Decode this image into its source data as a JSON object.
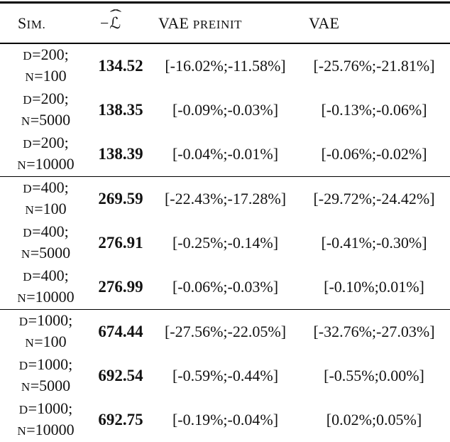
{
  "colors": {
    "text": "#121212",
    "rule": "#000000",
    "background": "#ffffff"
  },
  "header": {
    "sim_cap": "S",
    "sim_small": "IM.",
    "minus": "−",
    "loss_letter": "ℒ",
    "hat": "ˆ",
    "vae_preinit_cap": "VAE",
    "vae_preinit_small": "PREINIT",
    "vae": "VAE"
  },
  "labels": {
    "d": "D",
    "n": "N"
  },
  "rows": [
    {
      "d_rest": "=200;",
      "n_rest": "=100",
      "nll": "134.52",
      "vae_preinit": "[-16.02%;-11.58%]",
      "vae": "[-25.76%;-21.81%]"
    },
    {
      "d_rest": "=200;",
      "n_rest": "=5000",
      "nll": "138.35",
      "vae_preinit": "[-0.09%;-0.03%]",
      "vae": "[-0.13%;-0.06%]"
    },
    {
      "d_rest": "=200;",
      "n_rest": "=10000",
      "nll": "138.39",
      "vae_preinit": "[-0.04%;-0.01%]",
      "vae": "[-0.06%;-0.02%]"
    },
    {
      "d_rest": "=400;",
      "n_rest": "=100",
      "nll": "269.59",
      "vae_preinit": "[-22.43%;-17.28%]",
      "vae": "[-29.72%;-24.42%]"
    },
    {
      "d_rest": "=400;",
      "n_rest": "=5000",
      "nll": "276.91",
      "vae_preinit": "[-0.25%;-0.14%]",
      "vae": "[-0.41%;-0.30%]"
    },
    {
      "d_rest": "=400;",
      "n_rest": "=10000",
      "nll": "276.99",
      "vae_preinit": "[-0.06%;-0.03%]",
      "vae": "[-0.10%;0.01%]"
    },
    {
      "d_rest": "=1000;",
      "n_rest": "=100",
      "nll": "674.44",
      "vae_preinit": "[-27.56%;-22.05%]",
      "vae": "[-32.76%;-27.03%]"
    },
    {
      "d_rest": "=1000;",
      "n_rest": "=5000",
      "nll": "692.54",
      "vae_preinit": "[-0.59%;-0.44%]",
      "vae": "[-0.55%;0.00%]"
    },
    {
      "d_rest": "=1000;",
      "n_rest": "=10000",
      "nll": "692.75",
      "vae_preinit": "[-0.19%;-0.04%]",
      "vae": "[0.02%;0.05%]"
    }
  ]
}
